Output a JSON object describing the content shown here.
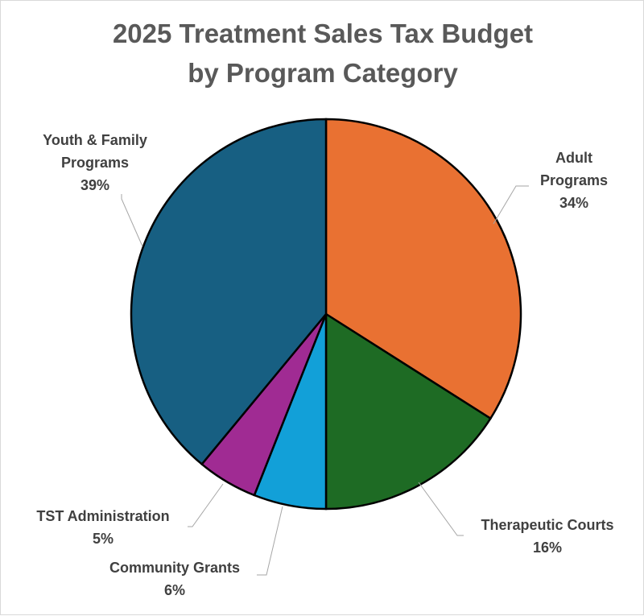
{
  "chart_data": {
    "type": "pie",
    "title_lines": [
      "2025 Treatment Sales Tax Budget",
      "by Program Category"
    ],
    "legend": "none",
    "slices": [
      {
        "name_lines": [
          "Adult",
          "Programs"
        ],
        "label": "34%",
        "value": 34,
        "color": "#E97132"
      },
      {
        "name_lines": [
          "Therapeutic Courts"
        ],
        "label": "16%",
        "value": 16,
        "color": "#1E6B24"
      },
      {
        "name_lines": [
          "Community Grants"
        ],
        "label": "6%",
        "value": 6,
        "color": "#12A0D8"
      },
      {
        "name_lines": [
          "TST Administration"
        ],
        "label": "5%",
        "value": 5,
        "color": "#A02B93"
      },
      {
        "name_lines": [
          "Youth & Family",
          "Programs"
        ],
        "label": "39%",
        "value": 39,
        "color": "#175F82"
      }
    ]
  }
}
